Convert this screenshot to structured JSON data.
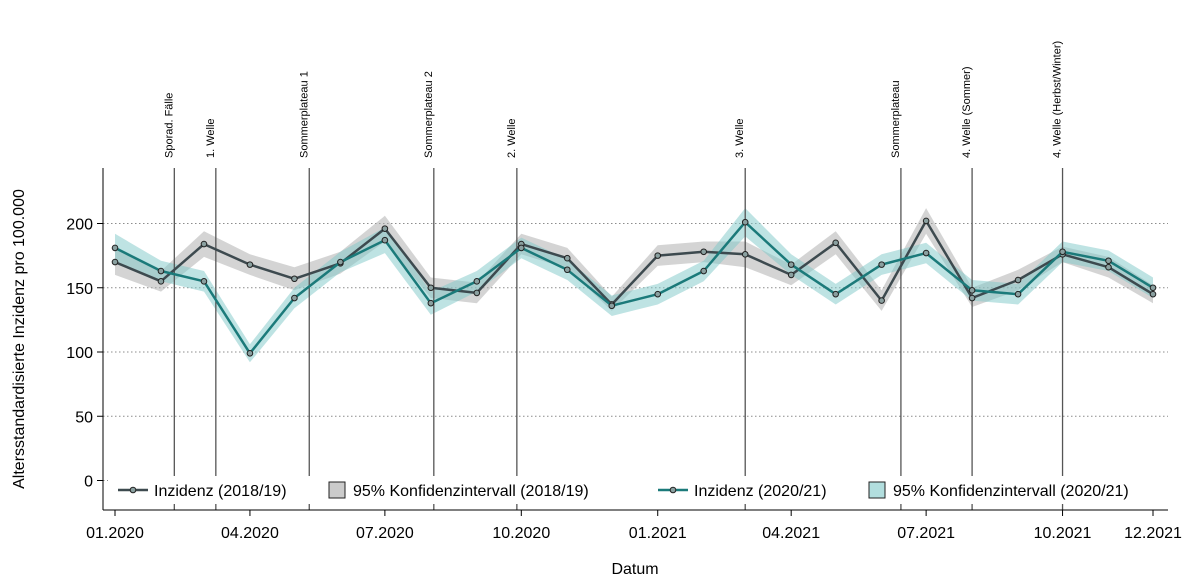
{
  "chart_data": {
    "type": "line",
    "xlabel": "Datum",
    "ylabel": "Altersstandardisierte Inzidenz pro 100.000",
    "ylim": [
      -5,
      240
    ],
    "xlim": [
      "2020-01-01",
      "2021-12-01"
    ],
    "y_ticks": [
      0,
      50,
      100,
      150,
      200
    ],
    "y_tick_labels": [
      "0",
      "50",
      "100",
      "150",
      "200"
    ],
    "x_ticks": [
      "2020-01-01",
      "2020-04-01",
      "2020-07-01",
      "2020-10-01",
      "2021-01-01",
      "2021-04-01",
      "2021-07-01",
      "2021-10-01",
      "2021-12-01"
    ],
    "x_tick_labels": [
      "01.2020",
      "04.2020",
      "07.2020",
      "10.2020",
      "01.2021",
      "04.2021",
      "07.2021",
      "10.2021",
      "12.2021"
    ],
    "grid": "horizontal dotted",
    "legend_position": "bottom",
    "x": [
      "2020-01-01",
      "2020-02-01",
      "2020-03-01",
      "2020-04-01",
      "2020-05-01",
      "2020-06-01",
      "2020-07-01",
      "2020-08-01",
      "2020-09-01",
      "2020-10-01",
      "2020-11-01",
      "2020-12-01",
      "2021-01-01",
      "2021-02-01",
      "2021-03-01",
      "2021-04-01",
      "2021-05-01",
      "2021-06-01",
      "2021-07-01",
      "2021-08-01",
      "2021-09-01",
      "2021-10-01",
      "2021-11-01",
      "2021-12-01"
    ],
    "series": [
      {
        "name": "Inzidenz (2018/19)",
        "color": "#3d4a4f",
        "band_color": "#a9a9a9",
        "values": [
          170,
          155,
          184,
          168,
          157,
          169,
          196,
          150,
          146,
          184,
          173,
          137,
          175,
          178,
          176,
          160,
          185,
          140,
          202,
          142,
          156,
          176,
          166,
          145
        ],
        "ci_lower": [
          160,
          147,
          174,
          160,
          148,
          161,
          186,
          142,
          138,
          176,
          165,
          132,
          167,
          170,
          166,
          152,
          176,
          132,
          192,
          135,
          148,
          170,
          158,
          138
        ],
        "ci_upper": [
          180,
          163,
          194,
          176,
          166,
          178,
          206,
          158,
          154,
          192,
          181,
          143,
          183,
          186,
          186,
          168,
          194,
          148,
          212,
          150,
          164,
          182,
          174,
          152
        ]
      },
      {
        "name": "Inzidenz (2020/21)",
        "color": "#1b7a7a",
        "band_color": "#7ec8c8",
        "values": [
          181,
          163,
          155,
          99,
          142,
          170,
          187,
          138,
          155,
          181,
          164,
          136,
          145,
          163,
          201,
          168,
          145,
          168,
          177,
          148,
          145,
          178,
          171,
          150
        ],
        "ci_lower": [
          171,
          155,
          147,
          92,
          134,
          162,
          177,
          129,
          147,
          173,
          156,
          128,
          137,
          155,
          190,
          160,
          137,
          160,
          169,
          140,
          137,
          170,
          163,
          142
        ],
        "ci_upper": [
          192,
          171,
          163,
          106,
          150,
          178,
          197,
          147,
          163,
          189,
          172,
          144,
          153,
          171,
          212,
          176,
          153,
          176,
          185,
          156,
          153,
          186,
          179,
          158
        ]
      }
    ],
    "band_legend": [
      "95% Konfidenzintervall (2018/19)",
      "95% Konfidenzintervall (2020/21)"
    ],
    "annotations": [
      {
        "date": "2020-02-10",
        "label": "Sporad. Fälle"
      },
      {
        "date": "2020-03-09",
        "label": "1. Welle"
      },
      {
        "date": "2020-05-11",
        "label": "Sommerplateau 1"
      },
      {
        "date": "2020-08-03",
        "label": "Sommerplateau 2"
      },
      {
        "date": "2020-09-28",
        "label": "2. Welle"
      },
      {
        "date": "2021-03-01",
        "label": "3. Welle"
      },
      {
        "date": "2021-06-14",
        "label": "Sommerplateau"
      },
      {
        "date": "2021-08-01",
        "label": "4. Welle (Sommer)"
      },
      {
        "date": "2021-10-01",
        "label": "4. Welle (Herbst/Winter)"
      }
    ]
  }
}
